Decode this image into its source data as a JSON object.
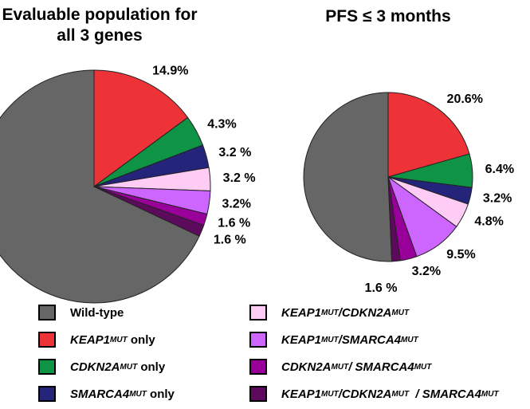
{
  "chart_data": [
    {
      "type": "pie",
      "title": "Evaluable population for all 3 genes",
      "values": [
        68,
        14.9,
        4.3,
        3.2,
        3.2,
        3.2,
        1.6,
        1.6
      ],
      "value_labels": [
        null,
        "14.9%",
        "4.3%",
        "3.2 %",
        "3.2 %",
        "3.2%",
        "1.6 %",
        "1.6 %"
      ]
    },
    {
      "type": "pie",
      "title": "PFS ≤ 3 months",
      "values": [
        50.7,
        20.6,
        6.4,
        3.2,
        4.8,
        9.5,
        3.2,
        1.6
      ],
      "value_labels": [
        null,
        "20.6%",
        "6.4%",
        "3.2%",
        "4.8%",
        "9.5%",
        "3.2%",
        "1.6 %"
      ]
    }
  ],
  "legend": {
    "colors": [
      "#666666",
      "#ee3338",
      "#0f9445",
      "#24247a",
      "#ffccf5",
      "#cc66ff",
      "#990099",
      "#5c0a5c"
    ],
    "categories": [
      [
        {
          "text": "Wild-type"
        }
      ],
      [
        {
          "text": "KEAP1",
          "italic": true
        },
        {
          "text": "MUT",
          "italic": true,
          "sup": true
        },
        {
          "text": " only"
        }
      ],
      [
        {
          "text": "CDKN2A",
          "italic": true
        },
        {
          "text": "MUT",
          "italic": true,
          "sup": true
        },
        {
          "text": " only"
        }
      ],
      [
        {
          "text": "SMARCA4",
          "italic": true
        },
        {
          "text": "MUT",
          "italic": true,
          "sup": true
        },
        {
          "text": " only"
        }
      ],
      [
        {
          "text": "KEAP1",
          "italic": true
        },
        {
          "text": "MUT",
          "italic": true,
          "sup": true
        },
        {
          "text": "/CDKN2A",
          "italic": true
        },
        {
          "text": "MUT",
          "italic": true,
          "sup": true
        }
      ],
      [
        {
          "text": "KEAP1",
          "italic": true
        },
        {
          "text": "MUT",
          "italic": true,
          "sup": true
        },
        {
          "text": "/SMARCA4",
          "italic": true
        },
        {
          "text": "MUT",
          "italic": true,
          "sup": true
        }
      ],
      [
        {
          "text": "CDKN2A",
          "italic": true
        },
        {
          "text": "MUT",
          "italic": true,
          "sup": true
        },
        {
          "text": "/ SMARCA4",
          "italic": true
        },
        {
          "text": "MUT",
          "italic": true,
          "sup": true
        }
      ],
      [
        {
          "text": "KEAP1",
          "italic": true
        },
        {
          "text": "MUT",
          "italic": true,
          "sup": true
        },
        {
          "text": "/CDKN2A",
          "italic": true
        },
        {
          "text": "MUT",
          "italic": true,
          "sup": true
        },
        {
          "text": "  / SMARCA4",
          "italic": true
        },
        {
          "text": "MUT",
          "italic": true,
          "sup": true
        }
      ]
    ]
  }
}
